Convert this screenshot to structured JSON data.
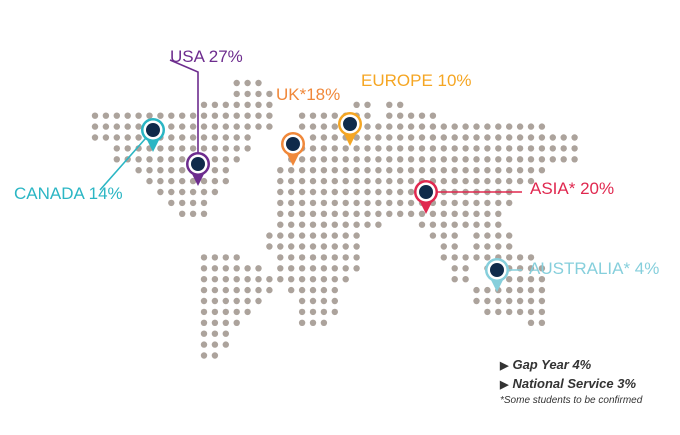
{
  "map": {
    "dot_color": "#aca39c",
    "pin_center_color": "#0f2a4a",
    "regions": [
      {
        "id": "usa",
        "label": "USA 27%",
        "color": "#6d2c8e"
      },
      {
        "id": "canada",
        "label": "CANADA 14%",
        "color": "#2bb6c4"
      },
      {
        "id": "uk",
        "label": "UK*18%",
        "color": "#f0883a"
      },
      {
        "id": "europe",
        "label": "EUROPE 10%",
        "color": "#f5a623"
      },
      {
        "id": "asia",
        "label": "ASIA* 20%",
        "color": "#e0284f"
      },
      {
        "id": "australia",
        "label": "AUSTRALIA* 4%",
        "color": "#86cfdc"
      }
    ]
  },
  "notes": {
    "gap_year": "Gap Year 4%",
    "national_service": "National Service 3%",
    "footnote": "*Some students to be confirmed"
  }
}
